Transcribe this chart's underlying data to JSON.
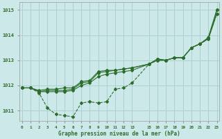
{
  "background_color": "#cce8e8",
  "grid_color": "#aad0d0",
  "line_color": "#2d6e2d",
  "title": "Graphe pression niveau de la mer (hPa)",
  "x_ticks": [
    0,
    1,
    2,
    3,
    4,
    5,
    6,
    7,
    8,
    9,
    10,
    11,
    12,
    13,
    15,
    16,
    17,
    18,
    19,
    20,
    21,
    22,
    23
  ],
  "ylim": [
    1010.6,
    1015.3
  ],
  "yticks": [
    1011,
    1012,
    1013,
    1014,
    1015
  ],
  "series": [
    {
      "x": [
        0,
        1,
        2,
        3,
        4,
        5,
        6,
        7,
        8,
        9,
        10,
        11,
        12,
        13,
        15,
        16,
        17,
        18,
        19,
        20,
        21,
        22,
        23
      ],
      "y": [
        1011.9,
        1011.9,
        1011.7,
        1011.1,
        1010.85,
        1010.8,
        1010.75,
        1011.3,
        1011.35,
        1011.3,
        1011.35,
        1011.85,
        1011.9,
        1012.1,
        1012.85,
        1013.0,
        1013.0,
        1013.1,
        1013.1,
        1013.5,
        1013.65,
        1013.85,
        1014.85
      ],
      "linestyle": "dashed"
    },
    {
      "x": [
        0,
        1,
        2,
        3,
        4,
        5,
        6,
        7,
        8,
        9,
        10,
        11,
        12,
        13,
        15,
        16,
        17,
        18,
        19,
        20,
        21,
        22,
        23
      ],
      "y": [
        1011.9,
        1011.9,
        1011.75,
        1011.75,
        1011.75,
        1011.75,
        1011.8,
        1012.0,
        1012.1,
        1012.35,
        1012.45,
        1012.5,
        1012.55,
        1012.6,
        1012.85,
        1013.0,
        1013.0,
        1013.1,
        1013.1,
        1013.5,
        1013.65,
        1013.85,
        1014.85
      ],
      "linestyle": "solid"
    },
    {
      "x": [
        0,
        1,
        2,
        3,
        4,
        5,
        6,
        7,
        8,
        9,
        10,
        11,
        12,
        13,
        15,
        16,
        17,
        18,
        19,
        20,
        21,
        22,
        23
      ],
      "y": [
        1011.9,
        1011.9,
        1011.75,
        1011.8,
        1011.8,
        1011.8,
        1011.85,
        1012.1,
        1012.15,
        1012.5,
        1012.55,
        1012.6,
        1012.65,
        1012.7,
        1012.85,
        1013.05,
        1013.0,
        1013.1,
        1013.1,
        1013.5,
        1013.65,
        1013.9,
        1015.0
      ],
      "linestyle": "solid"
    },
    {
      "x": [
        0,
        1,
        2,
        3,
        4,
        5,
        6,
        7,
        8,
        9,
        10,
        11,
        12,
        13,
        15,
        16,
        17,
        18,
        19,
        20,
        21,
        22,
        23
      ],
      "y": [
        1011.9,
        1011.9,
        1011.8,
        1011.85,
        1011.85,
        1011.9,
        1011.9,
        1012.15,
        1012.2,
        1012.55,
        1012.6,
        1012.6,
        1012.65,
        1012.7,
        1012.85,
        1013.05,
        1013.0,
        1013.1,
        1013.1,
        1013.5,
        1013.65,
        1013.9,
        1015.0
      ],
      "linestyle": "solid"
    }
  ]
}
